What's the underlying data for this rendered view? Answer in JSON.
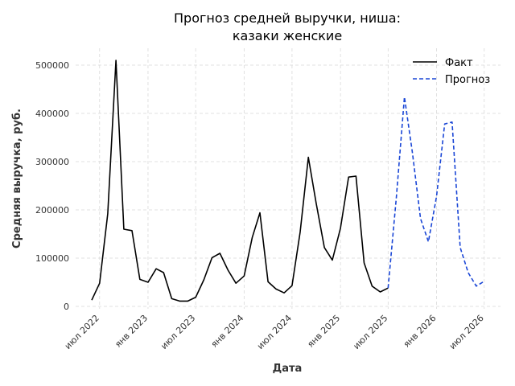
{
  "chart_data": {
    "type": "line",
    "title_lines": [
      "Прогноз средней выручки, ниша:",
      "казаки женские"
    ],
    "xlabel": "Дата",
    "ylabel": "Средняя выручка, руб.",
    "ylim": [
      -5000,
      535000
    ],
    "xlim": [
      "2022-04-01",
      "2026-09-01"
    ],
    "grid": true,
    "legend_position": "top-right",
    "x_ticks": [
      {
        "date": "2022-07-01",
        "label": "июл 2022"
      },
      {
        "date": "2023-01-01",
        "label": "янв 2023"
      },
      {
        "date": "2023-07-01",
        "label": "июл 2023"
      },
      {
        "date": "2024-01-01",
        "label": "янв 2024"
      },
      {
        "date": "2024-07-01",
        "label": "июл 2024"
      },
      {
        "date": "2025-01-01",
        "label": "янв 2025"
      },
      {
        "date": "2025-07-01",
        "label": "июл 2025"
      },
      {
        "date": "2026-01-01",
        "label": "янв 2026"
      },
      {
        "date": "2026-07-01",
        "label": "июл 2026"
      }
    ],
    "y_ticks": [
      {
        "value": 0,
        "label": "0"
      },
      {
        "value": 100000,
        "label": "100000"
      },
      {
        "value": 200000,
        "label": "200000"
      },
      {
        "value": 300000,
        "label": "300000"
      },
      {
        "value": 400000,
        "label": "400000"
      },
      {
        "value": 500000,
        "label": "500000"
      }
    ],
    "series": [
      {
        "name": "Факт",
        "color": "#000000",
        "style": "solid",
        "points": [
          [
            "2022-06-01",
            13000
          ],
          [
            "2022-07-01",
            48000
          ],
          [
            "2022-08-01",
            192000
          ],
          [
            "2022-09-01",
            510000
          ],
          [
            "2022-10-01",
            160000
          ],
          [
            "2022-11-01",
            157000
          ],
          [
            "2022-12-01",
            56000
          ],
          [
            "2023-01-01",
            50000
          ],
          [
            "2023-02-01",
            78000
          ],
          [
            "2023-03-01",
            70000
          ],
          [
            "2023-04-01",
            16000
          ],
          [
            "2023-05-01",
            11000
          ],
          [
            "2023-06-01",
            11000
          ],
          [
            "2023-07-01",
            19000
          ],
          [
            "2023-08-01",
            55000
          ],
          [
            "2023-09-01",
            101000
          ],
          [
            "2023-10-01",
            110000
          ],
          [
            "2023-11-01",
            75000
          ],
          [
            "2023-12-01",
            48000
          ],
          [
            "2024-01-01",
            63000
          ],
          [
            "2024-02-01",
            143000
          ],
          [
            "2024-03-01",
            194000
          ],
          [
            "2024-04-01",
            51000
          ],
          [
            "2024-05-01",
            36000
          ],
          [
            "2024-06-01",
            28000
          ],
          [
            "2024-07-01",
            43000
          ],
          [
            "2024-08-01",
            154000
          ],
          [
            "2024-09-01",
            309000
          ],
          [
            "2024-10-01",
            213000
          ],
          [
            "2024-11-01",
            122000
          ],
          [
            "2024-12-01",
            96000
          ],
          [
            "2025-01-01",
            162000
          ],
          [
            "2025-02-01",
            268000
          ],
          [
            "2025-03-01",
            270000
          ],
          [
            "2025-04-01",
            90000
          ],
          [
            "2025-05-01",
            42000
          ],
          [
            "2025-06-01",
            30000
          ],
          [
            "2025-07-01",
            38000
          ]
        ]
      },
      {
        "name": "Прогноз",
        "color": "#1a46d6",
        "style": "dashed",
        "points": [
          [
            "2025-07-01",
            38000
          ],
          [
            "2025-08-01",
            225000
          ],
          [
            "2025-09-01",
            434000
          ],
          [
            "2025-10-01",
            320000
          ],
          [
            "2025-11-01",
            182000
          ],
          [
            "2025-12-01",
            134000
          ],
          [
            "2026-01-01",
            228000
          ],
          [
            "2026-02-01",
            378000
          ],
          [
            "2026-03-01",
            382000
          ],
          [
            "2026-04-01",
            122000
          ],
          [
            "2026-05-01",
            70000
          ],
          [
            "2026-06-01",
            42000
          ],
          [
            "2026-07-01",
            52000
          ]
        ]
      }
    ]
  }
}
